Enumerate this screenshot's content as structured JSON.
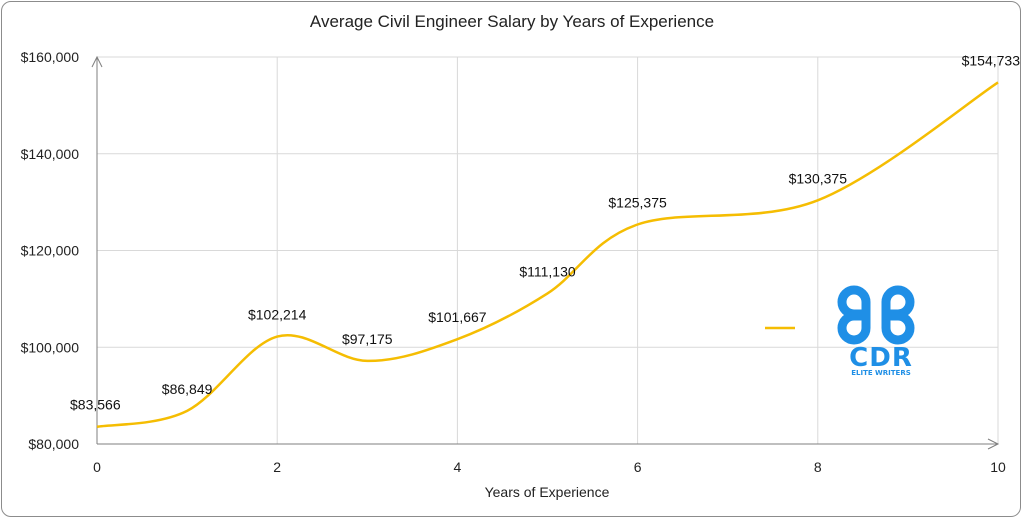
{
  "colors": {
    "line": "#f5bd02",
    "grid": "#d9d9d9",
    "axis": "#7f7f7f",
    "logo": "#1f8fe6"
  },
  "logo": {
    "text": "CDR",
    "subtext": "ELITE WRITERS",
    "icon": "command-key-icon"
  },
  "chart_data": {
    "type": "line",
    "title": "Average Civil Engineer Salary by Years of Experience",
    "xlabel": "Years of Experience",
    "ylabel": "",
    "xlim": [
      0,
      10
    ],
    "ylim": [
      80000,
      160000
    ],
    "xticks": [
      0,
      2,
      4,
      6,
      8,
      10
    ],
    "xtick_labels": [
      "0",
      "2",
      "4",
      "6",
      "8",
      "10"
    ],
    "yticks": [
      80000,
      100000,
      120000,
      140000,
      160000
    ],
    "ytick_labels": [
      "$80,000",
      "$100,000",
      "$120,000",
      "$140,000",
      "$160,000"
    ],
    "grid": true,
    "smooth": true,
    "series": [
      {
        "x": [
          0,
          1,
          2,
          3,
          4,
          5,
          6,
          8,
          10
        ],
        "values": [
          83566,
          86849,
          102214,
          97175,
          101667,
          111130,
          125375,
          130375,
          154733
        ],
        "labels": [
          "$83,566",
          "$86,849",
          "$102,214",
          "$97,175",
          "$101,667",
          "$111,130",
          "$125,375",
          "$130,375",
          "$154,733"
        ]
      }
    ]
  }
}
